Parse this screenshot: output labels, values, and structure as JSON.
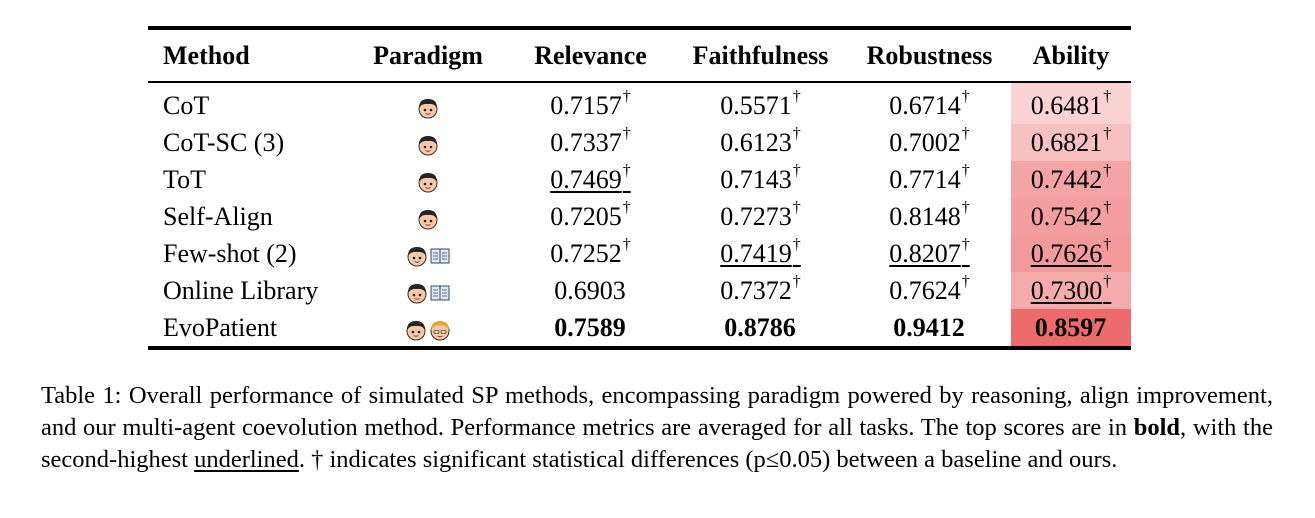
{
  "table": {
    "headers": {
      "method": "Method",
      "paradigm": "Paradigm",
      "relevance": "Relevance",
      "faithfulness": "Faithfulness",
      "robustness": "Robustness",
      "ability": "Ability"
    },
    "rows": [
      {
        "method": "CoT",
        "paradigm_icons": [
          "patient-face"
        ],
        "relevance": "0.7157",
        "relevance_mark": "†",
        "faithfulness": "0.5571",
        "faithfulness_mark": "†",
        "robustness": "0.6714",
        "robustness_mark": "†",
        "ability": "0.6481",
        "ability_mark": "†",
        "ability_fill": "#fbd3d3"
      },
      {
        "method": "CoT-SC (3)",
        "paradigm_icons": [
          "patient-face"
        ],
        "relevance": "0.7337",
        "relevance_mark": "†",
        "faithfulness": "0.6123",
        "faithfulness_mark": "†",
        "robustness": "0.7002",
        "robustness_mark": "†",
        "ability": "0.6821",
        "ability_mark": "†",
        "ability_fill": "#f8c1c1"
      },
      {
        "method": "ToT",
        "paradigm_icons": [
          "patient-face"
        ],
        "relevance": "0.7469",
        "relevance_mark": "†",
        "faithfulness": "0.7143",
        "faithfulness_mark": "†",
        "robustness": "0.7714",
        "robustness_mark": "†",
        "ability": "0.7442",
        "ability_mark": "†",
        "ability_fill": "#f4a4a4"
      },
      {
        "method": "Self-Align",
        "paradigm_icons": [
          "patient-face"
        ],
        "relevance": "0.7205",
        "relevance_mark": "†",
        "faithfulness": "0.7273",
        "faithfulness_mark": "†",
        "robustness": "0.8148",
        "robustness_mark": "†",
        "ability": "0.7542",
        "ability_mark": "†",
        "ability_fill": "#f39f9f"
      },
      {
        "method": "Few-shot (2)",
        "paradigm_icons": [
          "patient-face",
          "book"
        ],
        "relevance": "0.7252",
        "relevance_mark": "†",
        "faithfulness": "0.7419",
        "faithfulness_mark": "†",
        "robustness": "0.8207",
        "robustness_mark": "†",
        "ability": "0.7626",
        "ability_mark": "†",
        "ability_fill": "#f39a9a"
      },
      {
        "method": "Online Library",
        "paradigm_icons": [
          "patient-face",
          "book"
        ],
        "relevance": "0.6903",
        "relevance_mark": "",
        "faithfulness": "0.7372",
        "faithfulness_mark": "†",
        "robustness": "0.7624",
        "robustness_mark": "†",
        "ability": "0.7300",
        "ability_mark": "†",
        "ability_fill": "#f5abab"
      },
      {
        "method": "EvoPatient",
        "paradigm_icons": [
          "patient-face",
          "doctor-face"
        ],
        "relevance": "0.7589",
        "relevance_mark": "",
        "faithfulness": "0.8786",
        "faithfulness_mark": "",
        "robustness": "0.9412",
        "robustness_mark": "",
        "ability": "0.8597",
        "ability_mark": "",
        "ability_fill": "#ee6b6b"
      }
    ]
  },
  "caption": {
    "part1": "Table 1: Overall performance of simulated SP methods, encompassing paradigm powered by reasoning, align improvement, and our multi-agent coevolution method. Performance metrics are averaged for all tasks. The top scores are in ",
    "bold_word": "bold",
    "part2": ", with the second-highest ",
    "underlined_word": "underlined",
    "part3": ".  † indicates significant statistical differences (p≤0.05) between a baseline and ours."
  }
}
